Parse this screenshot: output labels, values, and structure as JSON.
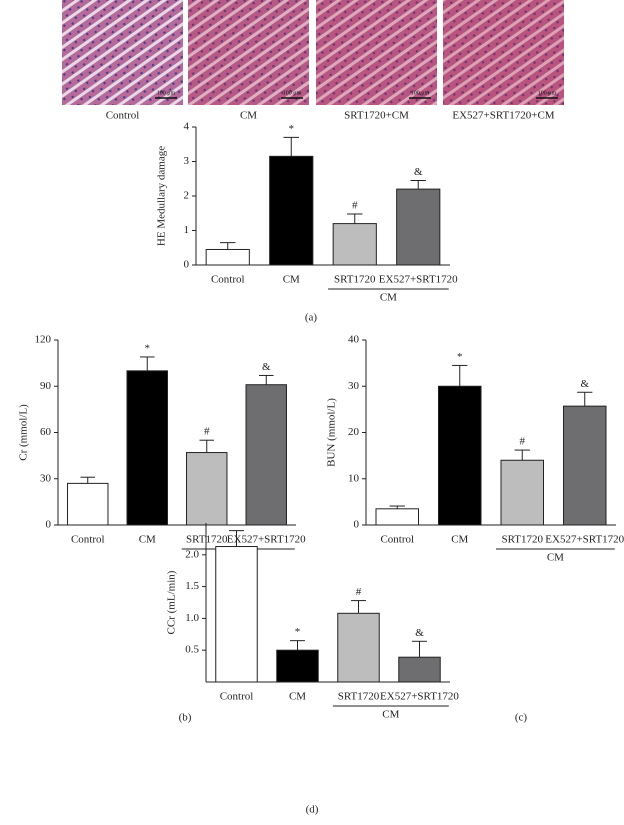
{
  "images": [
    {
      "label": "Control",
      "scale": "100 μm"
    },
    {
      "label": "CM",
      "scale": "100 μm"
    },
    {
      "label": "SRT1720+CM",
      "scale": "100 μm"
    },
    {
      "label": "EX527+SRT1720+CM",
      "scale": "100 μm"
    }
  ],
  "chart_data": [
    {
      "type": "bar",
      "panel": "(a)",
      "ylabel": "HE Medullary damage",
      "categories": [
        "Control",
        "CM",
        "SRT1720",
        "EX527+SRT1720"
      ],
      "group_label": "CM",
      "values": [
        0.45,
        3.15,
        1.2,
        2.2
      ],
      "errors": [
        0.2,
        0.55,
        0.28,
        0.25
      ],
      "annotations": [
        null,
        "*",
        "#",
        "&"
      ],
      "colors": [
        "#ffffff",
        "#000000",
        "#bdbdbd",
        "#6e6e70"
      ],
      "ylim": [
        0,
        4
      ],
      "yticks": [
        0,
        1,
        2,
        3,
        4
      ]
    },
    {
      "type": "bar",
      "panel": "(b)",
      "ylabel": "Cr (mmol/L)",
      "categories": [
        "Control",
        "CM",
        "SRT1720",
        "EX527+SRT1720"
      ],
      "group_label": "CM",
      "values": [
        27,
        100,
        47,
        91
      ],
      "errors": [
        4,
        9,
        8,
        6
      ],
      "annotations": [
        null,
        "*",
        "#",
        "&"
      ],
      "colors": [
        "#ffffff",
        "#000000",
        "#bdbdbd",
        "#6e6e70"
      ],
      "ylim": [
        0,
        120
      ],
      "yticks": [
        0,
        30,
        60,
        90,
        120
      ]
    },
    {
      "type": "bar",
      "panel": "(c)",
      "ylabel": "BUN (mmol/L)",
      "categories": [
        "Control",
        "CM",
        "SRT1720",
        "EX527+SRT1720"
      ],
      "group_label": "CM",
      "values": [
        3.5,
        30,
        14,
        25.7
      ],
      "errors": [
        0.6,
        4.5,
        2.2,
        3
      ],
      "annotations": [
        null,
        "*",
        "#",
        "&"
      ],
      "colors": [
        "#ffffff",
        "#000000",
        "#bdbdbd",
        "#6e6e70"
      ],
      "ylim": [
        0,
        40
      ],
      "yticks": [
        0,
        10,
        20,
        30,
        40
      ]
    },
    {
      "type": "bar",
      "panel": "(d)",
      "ylabel": "CCr (mL/min)",
      "categories": [
        "Control",
        "CM",
        "SRT1720",
        "EX527+SRT1720"
      ],
      "group_label": "CM",
      "values": [
        2.13,
        0.5,
        1.08,
        0.39
      ],
      "errors": [
        0.25,
        0.15,
        0.2,
        0.25
      ],
      "annotations": [
        null,
        "*",
        "#",
        "&"
      ],
      "colors": [
        "#ffffff",
        "#000000",
        "#bdbdbd",
        "#6e6e70"
      ],
      "ylim": [
        0,
        2.5
      ],
      "yticks": [
        {
          "value": 0.5,
          "label": "0.5"
        },
        {
          "value": 1,
          "label": "1.0"
        },
        {
          "value": 1.5,
          "label": "1.5"
        },
        {
          "value": 2,
          "label": "2.0"
        }
      ]
    }
  ]
}
